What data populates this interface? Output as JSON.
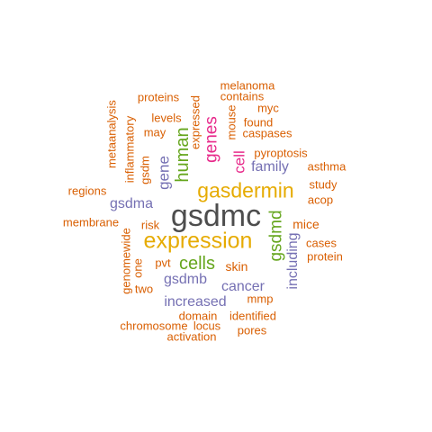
{
  "colors": {
    "dark_gray": "#4d4d4d",
    "orange": "#d95f02",
    "purple": "#7570b3",
    "magenta": "#e7298a",
    "green": "#66a61e",
    "gold": "#e6ab02"
  },
  "words": [
    {
      "id": "gsdmc",
      "text": "gsdmc",
      "color": "dark_gray"
    },
    {
      "id": "expression",
      "text": "expression",
      "color": "gold"
    },
    {
      "id": "gasdermin",
      "text": "gasdermin",
      "color": "gold"
    },
    {
      "id": "cells",
      "text": "cells",
      "color": "green"
    },
    {
      "id": "human",
      "text": "human",
      "color": "green"
    },
    {
      "id": "genes",
      "text": "genes",
      "color": "magenta"
    },
    {
      "id": "gsdmd",
      "text": "gsdmd",
      "color": "green"
    },
    {
      "id": "cell",
      "text": "cell",
      "color": "magenta"
    },
    {
      "id": "gene",
      "text": "gene",
      "color": "purple"
    },
    {
      "id": "family",
      "text": "family",
      "color": "purple"
    },
    {
      "id": "gsdma",
      "text": "gsdma",
      "color": "purple"
    },
    {
      "id": "gsdmb",
      "text": "gsdmb",
      "color": "purple"
    },
    {
      "id": "cancer",
      "text": "cancer",
      "color": "purple"
    },
    {
      "id": "increased",
      "text": "increased",
      "color": "purple"
    },
    {
      "id": "including",
      "text": "including",
      "color": "purple"
    },
    {
      "id": "expressed",
      "text": "expressed",
      "color": "orange"
    },
    {
      "id": "pyroptosis",
      "text": "pyroptosis",
      "color": "orange"
    },
    {
      "id": "mice",
      "text": "mice",
      "color": "orange"
    },
    {
      "id": "skin",
      "text": "skin",
      "color": "orange"
    },
    {
      "id": "mmp",
      "text": "mmp",
      "color": "orange"
    },
    {
      "id": "genomewide",
      "text": "genomewide",
      "color": "orange"
    },
    {
      "id": "melanoma",
      "text": "melanoma",
      "color": "orange"
    },
    {
      "id": "contains",
      "text": "contains",
      "color": "orange"
    },
    {
      "id": "proteins",
      "text": "proteins",
      "color": "orange"
    },
    {
      "id": "myc",
      "text": "myc",
      "color": "orange"
    },
    {
      "id": "metaanalysis",
      "text": "metaanalysis",
      "color": "orange"
    },
    {
      "id": "inflammatory",
      "text": "inflammatory",
      "color": "orange"
    },
    {
      "id": "levels",
      "text": "levels",
      "color": "orange"
    },
    {
      "id": "mouse",
      "text": "mouse",
      "color": "orange"
    },
    {
      "id": "found",
      "text": "found",
      "color": "orange"
    },
    {
      "id": "may",
      "text": "may",
      "color": "orange"
    },
    {
      "id": "caspases",
      "text": "caspases",
      "color": "orange"
    },
    {
      "id": "gsdm",
      "text": "gsdm",
      "color": "orange"
    },
    {
      "id": "asthma",
      "text": "asthma",
      "color": "orange"
    },
    {
      "id": "study",
      "text": "study",
      "color": "orange"
    },
    {
      "id": "regions",
      "text": "regions",
      "color": "orange"
    },
    {
      "id": "acop",
      "text": "acop",
      "color": "orange"
    },
    {
      "id": "membrane",
      "text": "membrane",
      "color": "orange"
    },
    {
      "id": "risk",
      "text": "risk",
      "color": "orange"
    },
    {
      "id": "cases",
      "text": "cases",
      "color": "orange"
    },
    {
      "id": "protein",
      "text": "protein",
      "color": "orange"
    },
    {
      "id": "pvt",
      "text": "pvt",
      "color": "orange"
    },
    {
      "id": "one",
      "text": "one",
      "color": "orange"
    },
    {
      "id": "two",
      "text": "two",
      "color": "orange"
    },
    {
      "id": "domain",
      "text": "domain",
      "color": "orange"
    },
    {
      "id": "identified",
      "text": "identified",
      "color": "orange"
    },
    {
      "id": "chromosome",
      "text": "chromosome",
      "color": "orange"
    },
    {
      "id": "locus",
      "text": "locus",
      "color": "orange"
    },
    {
      "id": "pores",
      "text": "pores",
      "color": "orange"
    },
    {
      "id": "activation",
      "text": "activation",
      "color": "orange"
    }
  ]
}
